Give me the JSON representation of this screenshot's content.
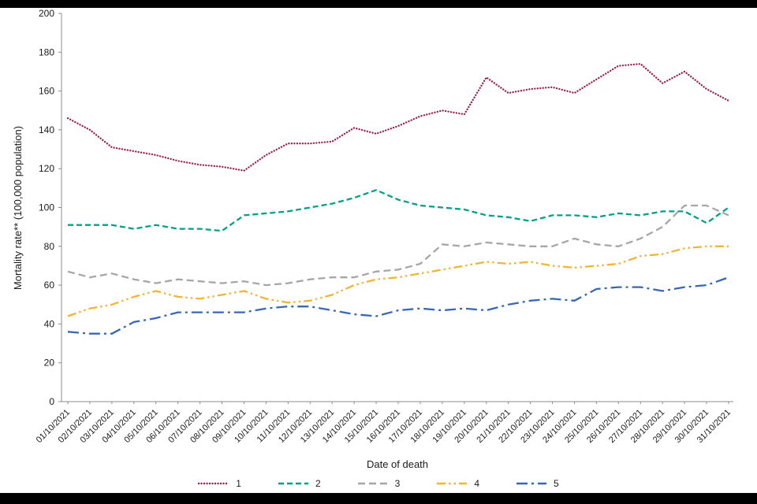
{
  "chart_data": {
    "type": "line",
    "title": "",
    "xlabel": "Date of death",
    "ylabel": "Mortality rate** (100,000 population)",
    "ylim": [
      0,
      200
    ],
    "ytick_step": 20,
    "grid": false,
    "legend_position": "bottom",
    "categories": [
      "01/10/2021",
      "02/10/2021",
      "03/10/2021",
      "04/10/2021",
      "05/10/2021",
      "06/10/2021",
      "07/10/2021",
      "08/10/2021",
      "09/10/2021",
      "10/10/2021",
      "11/10/2021",
      "12/10/2021",
      "13/10/2021",
      "14/10/2021",
      "15/10/2021",
      "16/10/2021",
      "17/10/2021",
      "18/10/2021",
      "19/10/2021",
      "20/10/2021",
      "21/10/2021",
      "22/10/2021",
      "23/10/2021",
      "24/10/2021",
      "25/10/2021",
      "26/10/2021",
      "27/10/2021",
      "28/10/2021",
      "29/10/2021",
      "30/10/2021",
      "31/10/2021"
    ],
    "series": [
      {
        "name": "1",
        "color": "#9e1b4b",
        "dash": "dotted",
        "values": [
          146,
          140,
          131,
          129,
          127,
          124,
          122,
          121,
          119,
          127,
          133,
          133,
          134,
          141,
          138,
          142,
          147,
          150,
          148,
          167,
          159,
          161,
          162,
          159,
          166,
          173,
          174,
          164,
          170,
          161,
          155
        ]
      },
      {
        "name": "2",
        "color": "#00a188",
        "dash": "dashed",
        "values": [
          91,
          91,
          91,
          89,
          91,
          89,
          89,
          88,
          96,
          97,
          98,
          100,
          102,
          105,
          109,
          104,
          101,
          100,
          99,
          96,
          95,
          93,
          96,
          96,
          95,
          97,
          96,
          98,
          98,
          92,
          100
        ]
      },
      {
        "name": "3",
        "color": "#a6a6a6",
        "dash": "long-dash",
        "values": [
          67,
          64,
          66,
          63,
          61,
          63,
          62,
          61,
          62,
          60,
          61,
          63,
          64,
          64,
          67,
          68,
          71,
          81,
          80,
          82,
          81,
          80,
          80,
          84,
          81,
          80,
          84,
          90,
          101,
          101,
          96
        ]
      },
      {
        "name": "4",
        "color": "#f1b434",
        "dash": "dash-dot-dot",
        "values": [
          44,
          48,
          50,
          54,
          57,
          54,
          53,
          55,
          57,
          53,
          51,
          52,
          55,
          60,
          63,
          64,
          66,
          68,
          70,
          72,
          71,
          72,
          70,
          69,
          70,
          71,
          75,
          76,
          79,
          80,
          80
        ]
      },
      {
        "name": "5",
        "color": "#3a67b1",
        "dash": "long-dash-dot",
        "values": [
          36,
          35,
          35,
          41,
          43,
          46,
          46,
          46,
          46,
          48,
          49,
          49,
          47,
          45,
          44,
          47,
          48,
          47,
          48,
          47,
          50,
          52,
          53,
          52,
          58,
          59,
          59,
          57,
          59,
          60,
          64
        ]
      }
    ]
  }
}
